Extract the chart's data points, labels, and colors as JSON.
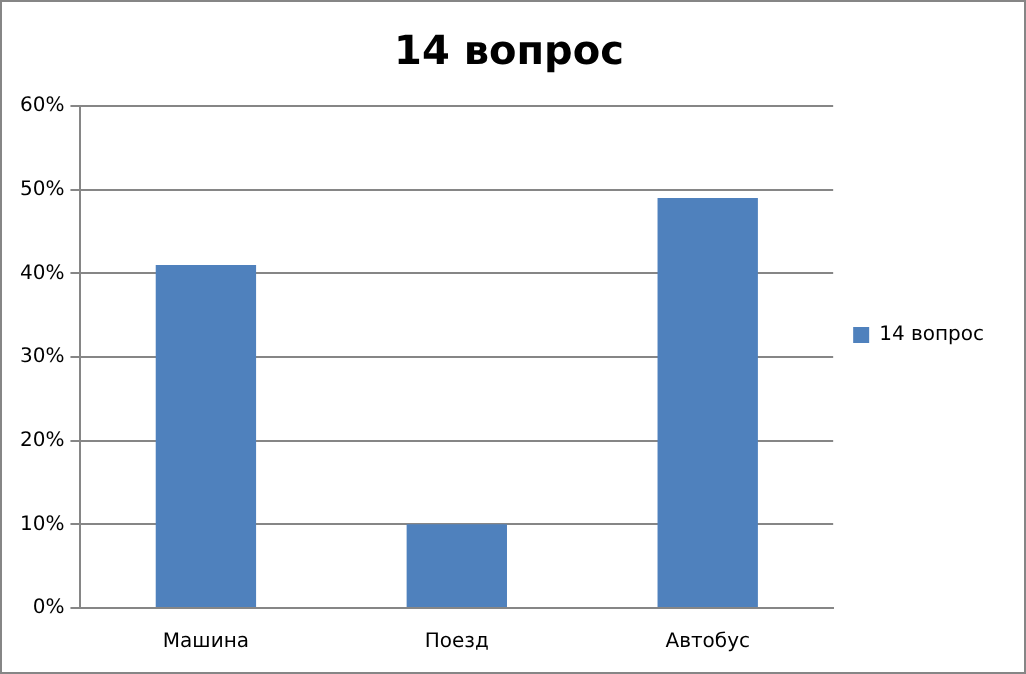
{
  "chart_data": {
    "type": "bar",
    "title": "14 вопрос",
    "categories": [
      "Машина",
      "Поезд",
      "Автобус"
    ],
    "series": [
      {
        "name": "14 вопрос",
        "color": "#4f81bd",
        "values": [
          41,
          10,
          49
        ]
      }
    ],
    "ylim": [
      0,
      60
    ],
    "yticks": [
      {
        "value": 0,
        "label": "0%"
      },
      {
        "value": 10,
        "label": "10%"
      },
      {
        "value": 20,
        "label": "20%"
      },
      {
        "value": 30,
        "label": "30%"
      },
      {
        "value": 40,
        "label": "40%"
      },
      {
        "value": 50,
        "label": "50%"
      },
      {
        "value": 60,
        "label": "60%"
      }
    ],
    "grid": "y",
    "legend": "right"
  }
}
